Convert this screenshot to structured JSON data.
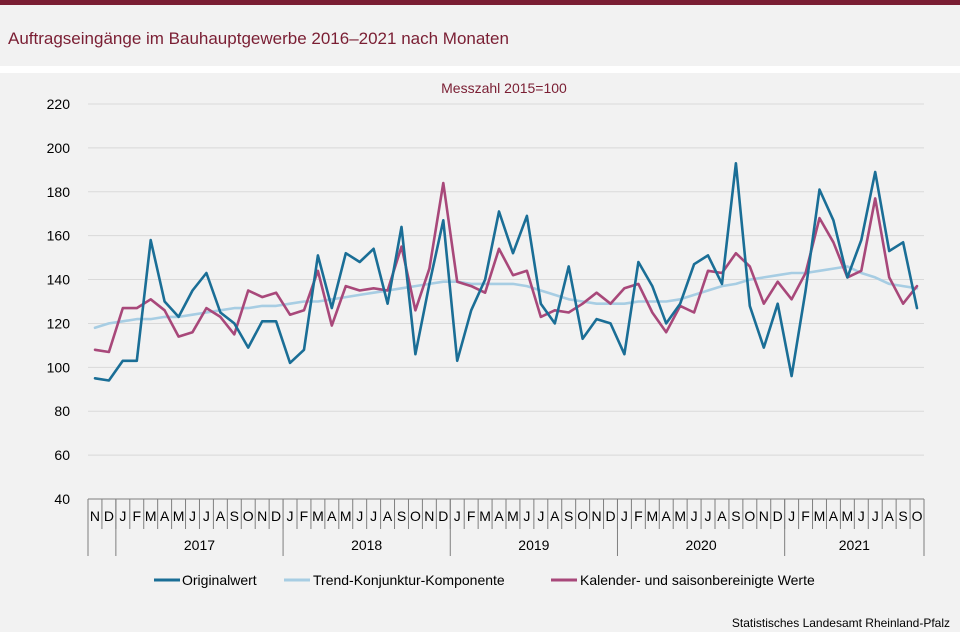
{
  "title": "Auftragseingänge im Bauhauptgewerbe 2016–2021 nach Monaten",
  "source": "Statistisches Landesamt Rheinland-Pfalz",
  "colors": {
    "original": "#1a6e96",
    "trend": "#a7cde3",
    "adjusted": "#a8487a",
    "title": "#7a1e33",
    "grid": "#d9d9d9"
  },
  "chart_data": {
    "type": "line",
    "subtitle": "Messzahl  2015=100",
    "ylim": [
      40,
      220
    ],
    "yticks": [
      40,
      60,
      80,
      100,
      120,
      140,
      160,
      180,
      200,
      220
    ],
    "grid": true,
    "legend_position": "bottom",
    "x": [
      "N",
      "D",
      "J",
      "F",
      "M",
      "A",
      "M",
      "J",
      "J",
      "A",
      "S",
      "O",
      "N",
      "D",
      "J",
      "F",
      "M",
      "A",
      "M",
      "J",
      "J",
      "A",
      "S",
      "O",
      "N",
      "D",
      "J",
      "F",
      "M",
      "A",
      "M",
      "J",
      "J",
      "A",
      "S",
      "O",
      "N",
      "D",
      "J",
      "F",
      "M",
      "A",
      "M",
      "J",
      "J",
      "A",
      "S",
      "O",
      "N",
      "D",
      "J",
      "F",
      "M",
      "A",
      "M",
      "J",
      "J",
      "A",
      "S",
      "O"
    ],
    "years": [
      {
        "label": "2017",
        "start": 2,
        "end": 13
      },
      {
        "label": "2018",
        "start": 14,
        "end": 25
      },
      {
        "label": "2019",
        "start": 26,
        "end": 37
      },
      {
        "label": "2020",
        "start": 38,
        "end": 49
      },
      {
        "label": "2021",
        "start": 50,
        "end": 59
      }
    ],
    "series": [
      {
        "name": "Originalwert",
        "color": "#1a6e96",
        "values": [
          95,
          94,
          103,
          103,
          158,
          130,
          123,
          135,
          143,
          125,
          120,
          109,
          121,
          121,
          102,
          108,
          151,
          127,
          152,
          148,
          154,
          129,
          164,
          106,
          138,
          167,
          103,
          126,
          140,
          171,
          152,
          169,
          129,
          120,
          146,
          113,
          122,
          120,
          106,
          148,
          137,
          120,
          129,
          147,
          151,
          138,
          193,
          128,
          109,
          129,
          96,
          135,
          181,
          167,
          141,
          158,
          189,
          153,
          157,
          127
        ]
      },
      {
        "name": "Trend-Konjunktur-Komponente",
        "color": "#a7cde3",
        "values": [
          118,
          120,
          121,
          122,
          122,
          123,
          123,
          124,
          125,
          126,
          127,
          127,
          128,
          128,
          129,
          130,
          130,
          131,
          132,
          133,
          134,
          135,
          136,
          137,
          138,
          139,
          139,
          138,
          138,
          138,
          138,
          137,
          135,
          133,
          131,
          130,
          129,
          129,
          129,
          130,
          130,
          130,
          131,
          133,
          135,
          137,
          138,
          140,
          141,
          142,
          143,
          143,
          144,
          145,
          146,
          143,
          141,
          138,
          137,
          136
        ]
      },
      {
        "name": "Kalender- und saisonbereinigte Werte",
        "color": "#a8487a",
        "values": [
          108,
          107,
          127,
          127,
          131,
          126,
          114,
          116,
          127,
          123,
          115,
          135,
          132,
          134,
          124,
          126,
          144,
          119,
          137,
          135,
          136,
          135,
          155,
          126,
          145,
          184,
          139,
          137,
          134,
          154,
          142,
          144,
          123,
          126,
          125,
          129,
          134,
          129,
          136,
          138,
          125,
          116,
          128,
          125,
          144,
          143,
          152,
          146,
          129,
          139,
          131,
          143,
          168,
          157,
          141,
          144,
          177,
          141,
          129,
          137
        ]
      }
    ]
  }
}
